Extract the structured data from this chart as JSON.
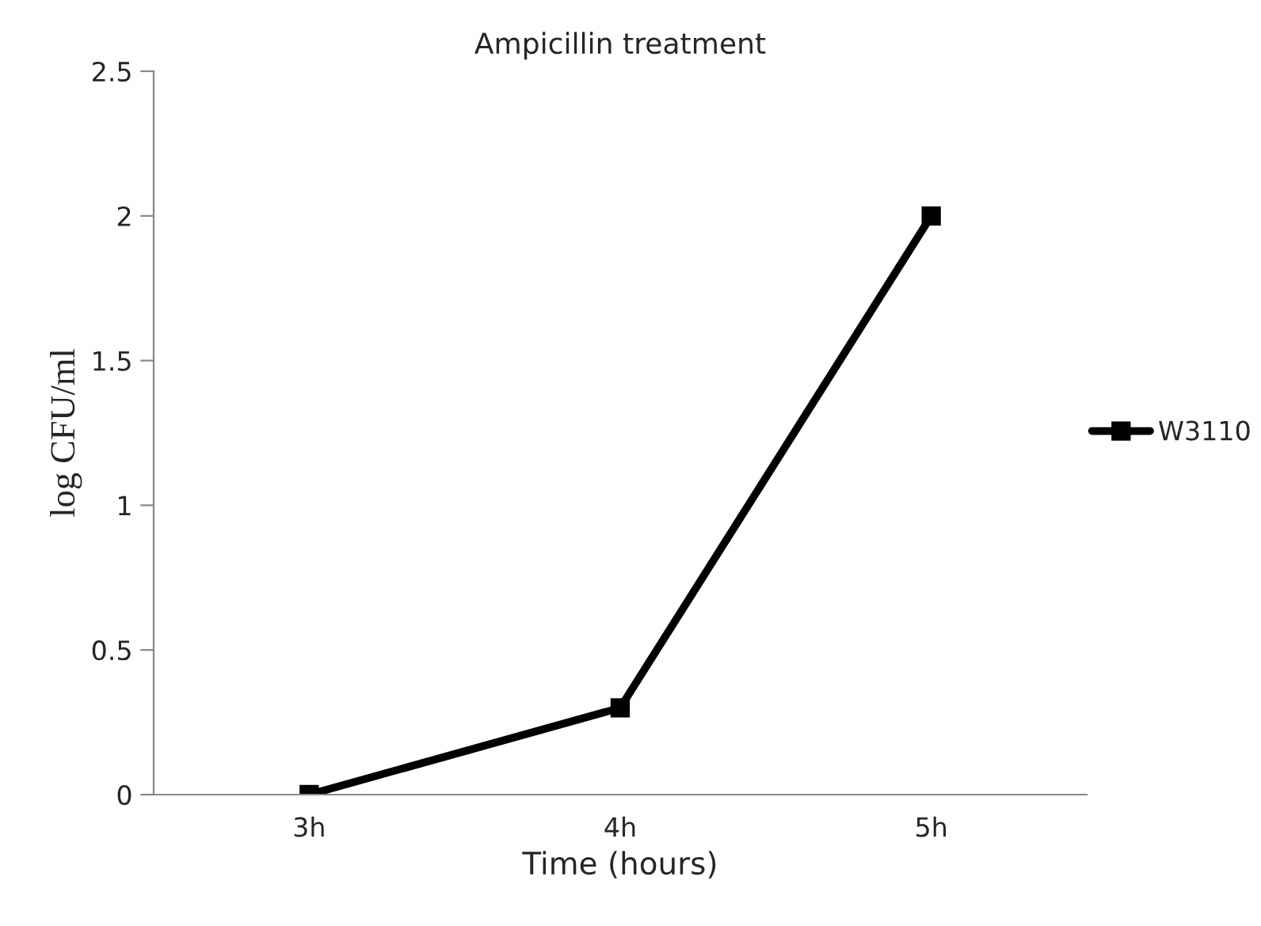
{
  "chart_data": {
    "type": "line",
    "title": "Ampicillin treatment",
    "xlabel": "Time (hours)",
    "ylabel": "log CFU/ml",
    "categories": [
      "3h",
      "4h",
      "5h"
    ],
    "series": [
      {
        "name": "W3110",
        "color": "#000000",
        "values": [
          0,
          0.3,
          2
        ]
      }
    ],
    "ylim": [
      0,
      2.5
    ],
    "yticks": [
      0,
      0.5,
      1,
      1.5,
      2,
      2.5
    ],
    "grid": false,
    "legend": "right",
    "marker": "square",
    "line_style": "solid"
  }
}
